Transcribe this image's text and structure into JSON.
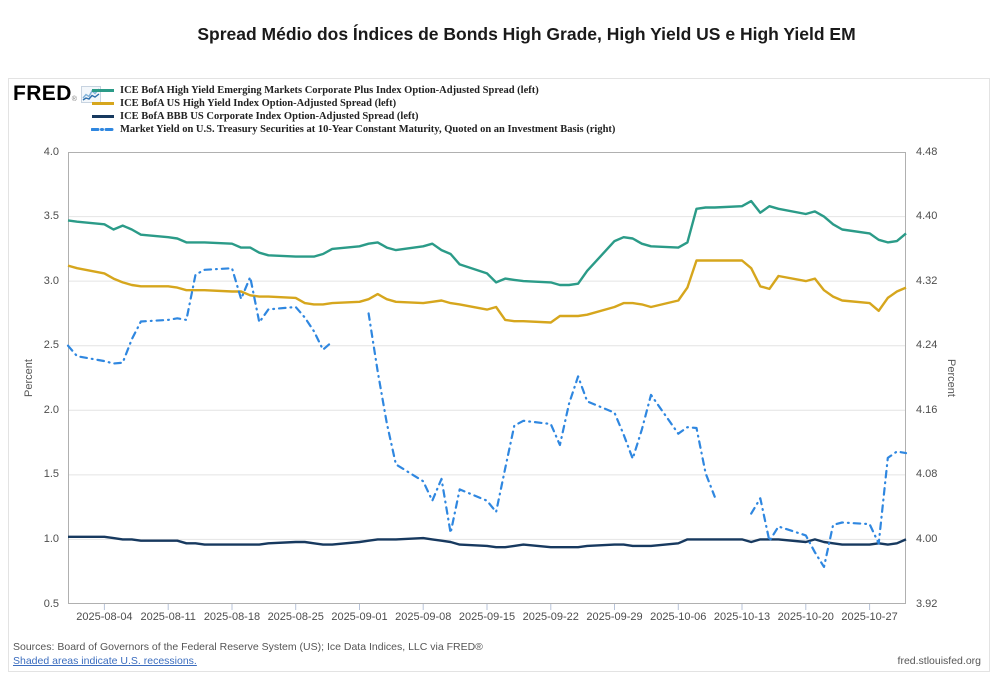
{
  "page": {
    "title": "Spread Médio dos Índices de Bonds High Grade, High Yield US e High Yield EM"
  },
  "branding": {
    "logo_text": "FRED",
    "registered": "®",
    "logo_icon": "sparkline-chart-icon"
  },
  "legend": [
    {
      "label": "ICE BofA High Yield Emerging Markets Corporate Plus Index Option-Adjusted Spread (left)",
      "color": "#2b9b88",
      "dash": false
    },
    {
      "label": "ICE BofA US High Yield Index Option-Adjusted Spread (left)",
      "color": "#d6a61d",
      "dash": false
    },
    {
      "label": "ICE BofA BBB US Corporate Index Option-Adjusted Spread (left)",
      "color": "#17395f",
      "dash": false
    },
    {
      "label": "Market Yield on U.S. Treasury Securities at 10-Year Constant Maturity, Quoted on an Investment Basis (right)",
      "color": "#2f87e0",
      "dash": true
    }
  ],
  "footer": {
    "sources": "Sources: Board of Governors of the Federal Reserve System (US); Ice Data Indices, LLC via FRED®",
    "recessions_note": "Shaded areas indicate U.S. recessions.",
    "site": "fred.stlouisfed.org"
  },
  "chart_data": {
    "type": "line",
    "title": "Spread Médio dos Índices de Bonds High Grade, High Yield US e High Yield EM",
    "grid": "horizontal",
    "x_range": [
      "2025-07-31",
      "2025-10-31"
    ],
    "x_ticks": [
      "2025-08-04",
      "2025-08-11",
      "2025-08-18",
      "2025-08-25",
      "2025-09-01",
      "2025-09-08",
      "2025-09-15",
      "2025-09-22",
      "2025-09-29",
      "2025-10-06",
      "2025-10-13",
      "2025-10-20",
      "2025-10-27"
    ],
    "left_axis": {
      "label": "Percent",
      "min": 0.5,
      "max": 4.0,
      "ticks": [
        4.0,
        3.5,
        3.0,
        2.5,
        2.0,
        1.5,
        1.0,
        0.5
      ],
      "tick_labels": [
        "4.0",
        "3.5",
        "3.0",
        "2.5",
        "2.0",
        "1.5",
        "1.0",
        "0.5"
      ]
    },
    "right_axis": {
      "label": "Percent",
      "min": 3.92,
      "max": 4.48,
      "ticks": [
        4.48,
        4.4,
        4.32,
        4.24,
        4.16,
        4.08,
        4.0,
        3.92
      ],
      "tick_labels": [
        "4.48",
        "4.40",
        "4.32",
        "4.24",
        "4.16",
        "4.08",
        "4.00",
        "3.92"
      ]
    },
    "dates": [
      "2025-07-31",
      "2025-08-01",
      "2025-08-04",
      "2025-08-05",
      "2025-08-06",
      "2025-08-07",
      "2025-08-08",
      "2025-08-11",
      "2025-08-12",
      "2025-08-13",
      "2025-08-14",
      "2025-08-15",
      "2025-08-18",
      "2025-08-19",
      "2025-08-20",
      "2025-08-21",
      "2025-08-22",
      "2025-08-25",
      "2025-08-26",
      "2025-08-27",
      "2025-08-28",
      "2025-08-29",
      "2025-09-01",
      "2025-09-02",
      "2025-09-03",
      "2025-09-04",
      "2025-09-05",
      "2025-09-08",
      "2025-09-09",
      "2025-09-10",
      "2025-09-11",
      "2025-09-12",
      "2025-09-15",
      "2025-09-16",
      "2025-09-17",
      "2025-09-18",
      "2025-09-19",
      "2025-09-22",
      "2025-09-23",
      "2025-09-24",
      "2025-09-25",
      "2025-09-26",
      "2025-09-29",
      "2025-09-30",
      "2025-10-01",
      "2025-10-02",
      "2025-10-03",
      "2025-10-06",
      "2025-10-07",
      "2025-10-08",
      "2025-10-09",
      "2025-10-10",
      "2025-10-13",
      "2025-10-14",
      "2025-10-15",
      "2025-10-16",
      "2025-10-17",
      "2025-10-20",
      "2025-10-21",
      "2025-10-22",
      "2025-10-23",
      "2025-10-24",
      "2025-10-27",
      "2025-10-28",
      "2025-10-29",
      "2025-10-30",
      "2025-10-31"
    ],
    "series": [
      {
        "name": "ICE BofA High Yield Emerging Markets Corporate Plus Index Option-Adjusted Spread",
        "axis": "left",
        "color": "#2b9b88",
        "style": "solid",
        "values": [
          3.47,
          3.46,
          3.44,
          3.4,
          3.43,
          3.4,
          3.36,
          3.34,
          3.33,
          3.3,
          3.3,
          3.3,
          3.29,
          3.26,
          3.26,
          3.22,
          3.2,
          3.19,
          3.19,
          3.19,
          3.21,
          3.25,
          3.27,
          3.29,
          3.3,
          3.26,
          3.24,
          3.27,
          3.29,
          3.24,
          3.21,
          3.13,
          3.06,
          2.99,
          3.02,
          3.01,
          3.0,
          2.99,
          2.97,
          2.97,
          2.98,
          3.08,
          3.31,
          3.34,
          3.33,
          3.29,
          3.27,
          3.26,
          3.3,
          3.56,
          3.57,
          3.57,
          3.58,
          3.62,
          3.53,
          3.58,
          3.56,
          3.52,
          3.54,
          3.5,
          3.44,
          3.4,
          3.37,
          3.32,
          3.3,
          3.31,
          3.37
        ]
      },
      {
        "name": "ICE BofA US High Yield Index Option-Adjusted Spread",
        "axis": "left",
        "color": "#d6a61d",
        "style": "solid",
        "values": [
          3.12,
          3.1,
          3.06,
          3.02,
          2.99,
          2.97,
          2.96,
          2.96,
          2.95,
          2.93,
          2.93,
          2.93,
          2.92,
          2.92,
          2.89,
          2.88,
          2.88,
          2.87,
          2.83,
          2.82,
          2.82,
          2.83,
          2.84,
          2.86,
          2.9,
          2.86,
          2.84,
          2.83,
          2.84,
          2.85,
          2.83,
          2.82,
          2.78,
          2.8,
          2.7,
          2.69,
          2.69,
          2.68,
          2.73,
          2.73,
          2.73,
          2.74,
          2.8,
          2.83,
          2.83,
          2.82,
          2.8,
          2.85,
          2.95,
          3.16,
          3.16,
          3.16,
          3.16,
          3.1,
          2.96,
          2.94,
          3.04,
          3.0,
          3.02,
          2.93,
          2.88,
          2.85,
          2.83,
          2.77,
          2.87,
          2.92,
          2.95
        ]
      },
      {
        "name": "ICE BofA BBB US Corporate Index Option-Adjusted Spread",
        "axis": "left",
        "color": "#17395f",
        "style": "solid",
        "values": [
          1.02,
          1.02,
          1.02,
          1.01,
          1.0,
          1.0,
          0.99,
          0.99,
          0.99,
          0.97,
          0.97,
          0.96,
          0.96,
          0.96,
          0.96,
          0.96,
          0.97,
          0.98,
          0.98,
          0.97,
          0.96,
          0.96,
          0.98,
          0.99,
          1.0,
          1.0,
          1.0,
          1.01,
          1.0,
          0.99,
          0.98,
          0.96,
          0.95,
          0.94,
          0.94,
          0.95,
          0.96,
          0.94,
          0.94,
          0.94,
          0.94,
          0.95,
          0.96,
          0.96,
          0.95,
          0.95,
          0.95,
          0.97,
          1.0,
          1.0,
          1.0,
          1.0,
          1.0,
          0.98,
          1.0,
          1.0,
          1.0,
          0.98,
          1.0,
          0.98,
          0.97,
          0.96,
          0.96,
          0.97,
          0.96,
          0.97,
          1.0
        ]
      },
      {
        "name": "Market Yield on U.S. Treasury Securities at 10-Year Constant Maturity, Quoted on an Investment Basis",
        "axis": "right",
        "color": "#2f87e0",
        "style": "dash-dot",
        "values": [
          4.24,
          4.227,
          4.221,
          4.218,
          4.219,
          4.248,
          4.27,
          4.272,
          4.274,
          4.272,
          4.328,
          4.334,
          4.336,
          4.298,
          4.325,
          4.269,
          4.285,
          4.288,
          4.275,
          4.258,
          4.235,
          4.245,
          null,
          4.28,
          4.208,
          4.144,
          4.093,
          4.072,
          4.048,
          4.075,
          4.008,
          4.062,
          4.048,
          4.034,
          4.088,
          4.141,
          4.147,
          4.143,
          4.117,
          4.168,
          4.202,
          4.171,
          4.157,
          4.13,
          4.1,
          4.136,
          4.179,
          4.131,
          4.139,
          4.138,
          4.082,
          4.053,
          null,
          4.032,
          4.051,
          3.998,
          4.016,
          4.005,
          3.984,
          3.966,
          4.018,
          4.021,
          4.019,
          3.995,
          4.101,
          4.109,
          4.107
        ]
      }
    ]
  }
}
